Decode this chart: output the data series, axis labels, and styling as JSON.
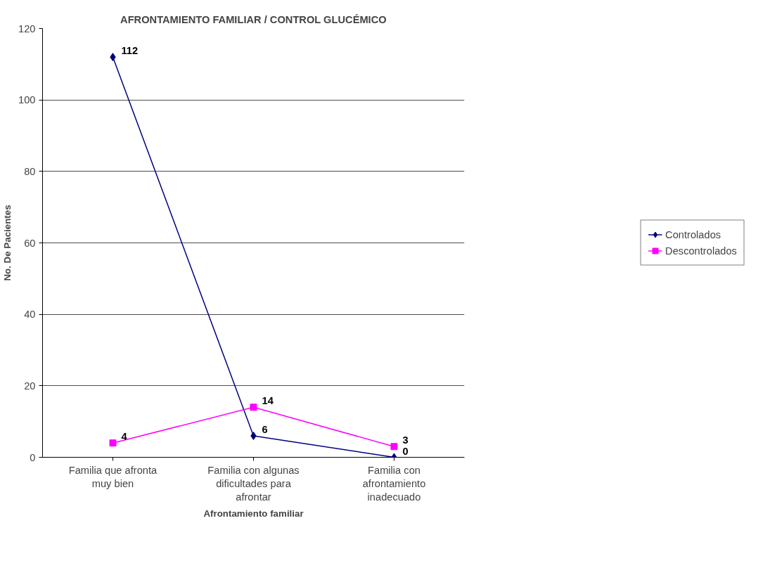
{
  "chart_data": {
    "type": "line",
    "title": "AFRONTAMIENTO FAMILIAR / CONTROL GLUCÉMICO",
    "xlabel": "Afrontamiento familiar",
    "ylabel": "No. De Pacientes",
    "categories": [
      "Familia que afronta muy bien",
      "Familia con algunas dificultades para afrontar",
      "Familia con afrontamiento inadecuado"
    ],
    "series": [
      {
        "name": "Controlados",
        "color": "#000080",
        "marker": "diamond",
        "values": [
          112,
          6,
          0
        ]
      },
      {
        "name": "Descontrolados",
        "color": "#ff00ff",
        "marker": "square",
        "values": [
          4,
          14,
          3
        ]
      }
    ],
    "ylim": [
      0,
      120
    ],
    "yticks": [
      0,
      20,
      40,
      60,
      80,
      100,
      120
    ],
    "grid": "y",
    "legend": "right",
    "data_labels": true,
    "line_style": "solid"
  }
}
